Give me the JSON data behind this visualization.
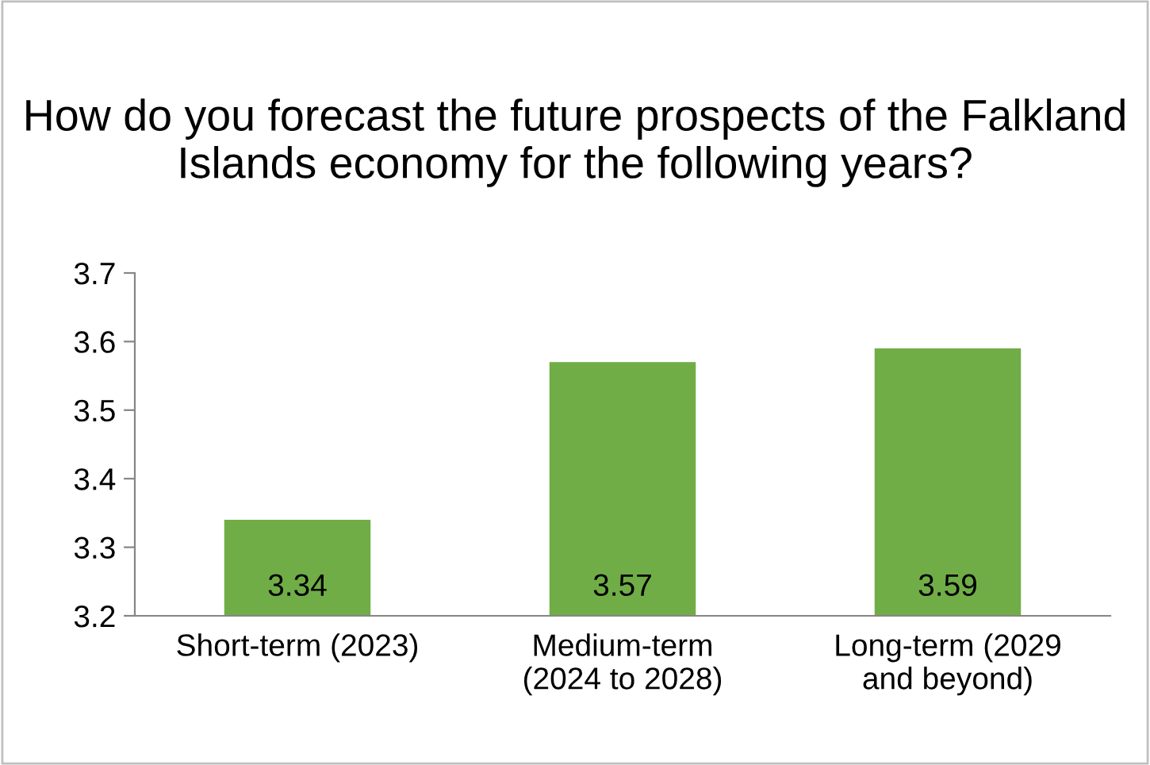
{
  "chart_data": {
    "type": "bar",
    "title": "How do you forecast the future prospects of the Falkland Islands economy for the following years?",
    "categories": [
      "Short-term (2023)",
      "Medium-term\n(2024 to 2028)",
      "Long-term (2029\nand beyond)"
    ],
    "values": [
      3.34,
      3.57,
      3.59
    ],
    "color": "#70ad47",
    "ylim": [
      3.2,
      3.7
    ],
    "yticks": [
      3.2,
      3.3,
      3.4,
      3.5,
      3.6,
      3.7
    ],
    "grid": false,
    "data_labels": true
  }
}
